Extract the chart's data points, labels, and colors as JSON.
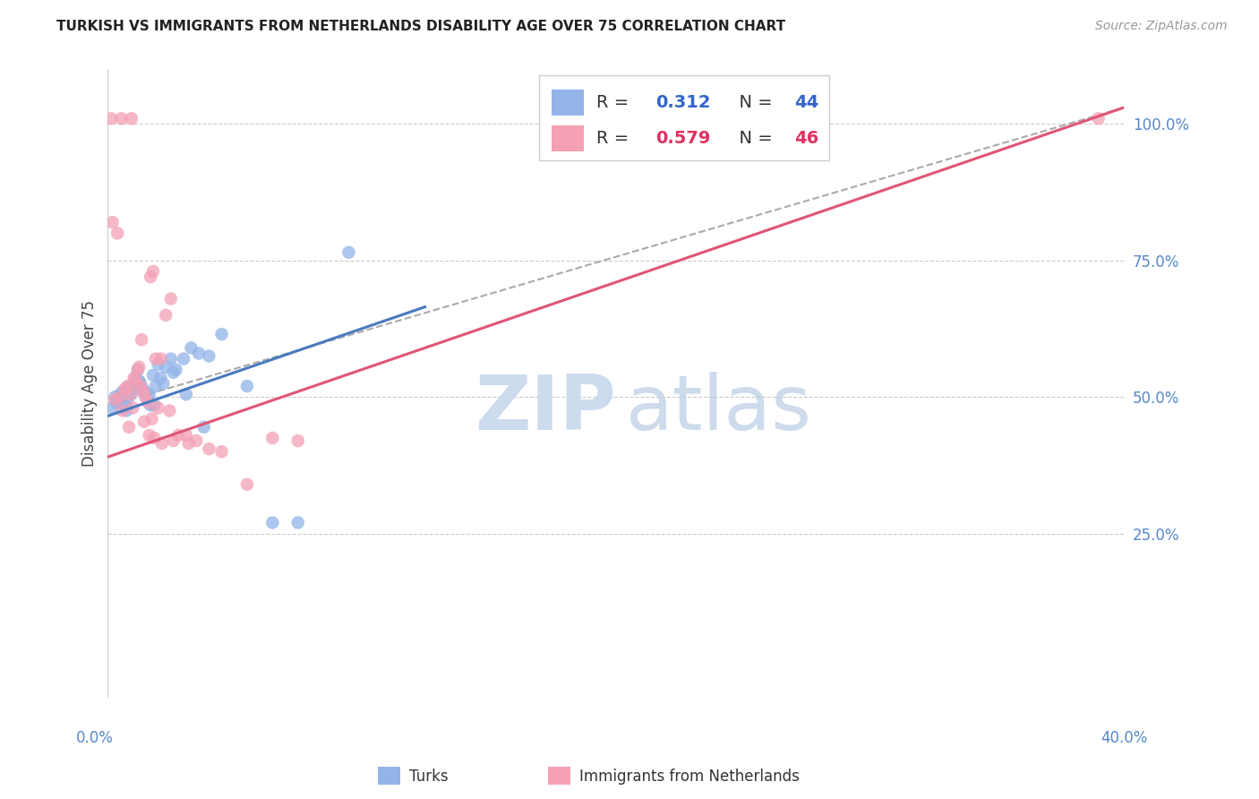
{
  "title": "TURKISH VS IMMIGRANTS FROM NETHERLANDS DISABILITY AGE OVER 75 CORRELATION CHART",
  "source": "Source: ZipAtlas.com",
  "ylabel": "Disability Age Over 75",
  "turks_R": 0.312,
  "turks_N": 44,
  "immigrants_R": 0.579,
  "immigrants_N": 46,
  "turks_color": "#92b4e8",
  "immigrants_color": "#f4a0b5",
  "turks_line_color": "#4a7abf",
  "immigrants_line_color": "#e05575",
  "dashed_line_color": "#aaaaaa",
  "xlim": [
    0,
    40
  ],
  "ylim": [
    -5,
    110
  ],
  "yticks": [
    0,
    25,
    50,
    75,
    100
  ],
  "ytick_labels": [
    "",
    "25.0%",
    "50.0%",
    "75.0%",
    "100.0%"
  ],
  "turks_x": [
    0.5,
    0.7,
    0.9,
    1.0,
    1.1,
    1.2,
    1.3,
    1.4,
    1.5,
    1.6,
    1.7,
    1.8,
    1.9,
    2.0,
    2.1,
    2.3,
    2.5,
    2.7,
    3.0,
    3.3,
    3.6,
    4.0,
    4.5,
    5.5,
    7.5,
    0.3,
    0.4,
    0.6,
    0.8,
    1.05,
    1.25,
    1.45,
    1.65,
    1.85,
    2.2,
    2.6,
    3.1,
    3.8,
    9.5,
    0.2,
    0.35,
    0.55,
    0.75,
    6.5
  ],
  "turks_y": [
    50.5,
    48.5,
    52.0,
    51.0,
    53.5,
    55.0,
    52.5,
    51.5,
    50.5,
    49.5,
    48.5,
    54.0,
    52.0,
    56.0,
    53.5,
    55.5,
    57.0,
    55.0,
    57.0,
    59.0,
    58.0,
    57.5,
    61.5,
    52.0,
    27.0,
    50.0,
    49.0,
    51.0,
    49.5,
    51.5,
    53.0,
    51.0,
    50.5,
    48.5,
    52.5,
    54.5,
    50.5,
    44.5,
    76.5,
    48.0,
    49.0,
    50.0,
    47.5,
    27.0
  ],
  "immigrants_x": [
    0.3,
    0.5,
    0.7,
    0.8,
    0.9,
    1.0,
    1.1,
    1.2,
    1.3,
    1.4,
    1.5,
    1.6,
    1.7,
    1.8,
    1.9,
    2.0,
    2.1,
    2.3,
    2.5,
    2.8,
    3.1,
    3.5,
    4.5,
    5.5,
    0.2,
    0.4,
    0.6,
    0.85,
    1.05,
    1.25,
    1.45,
    1.65,
    1.85,
    2.15,
    2.6,
    3.2,
    4.0,
    0.15,
    0.55,
    0.95,
    1.35,
    1.75,
    2.45,
    6.5,
    7.5,
    39.0
  ],
  "immigrants_y": [
    49.5,
    50.0,
    51.5,
    52.0,
    50.5,
    48.0,
    53.0,
    55.0,
    52.0,
    51.0,
    50.0,
    49.0,
    72.0,
    73.0,
    57.0,
    48.0,
    57.0,
    65.0,
    68.0,
    43.0,
    43.0,
    42.0,
    40.0,
    34.0,
    82.0,
    80.0,
    47.5,
    44.5,
    53.5,
    55.5,
    45.5,
    43.0,
    42.5,
    41.5,
    42.0,
    41.5,
    40.5,
    101.0,
    101.0,
    101.0,
    60.5,
    46.0,
    47.5,
    42.5,
    42.0,
    101.0
  ],
  "turks_line_x0": 0.0,
  "turks_line_y0": 46.5,
  "turks_line_x1": 12.5,
  "turks_line_y1": 66.5,
  "immigrants_line_x0": 0.0,
  "immigrants_line_y0": 39.0,
  "immigrants_line_x1": 40.0,
  "immigrants_line_y1": 103.0,
  "dashed_line_x0": 0.5,
  "dashed_line_y0": 49.0,
  "dashed_line_x1": 40.0,
  "dashed_line_y1": 103.0
}
